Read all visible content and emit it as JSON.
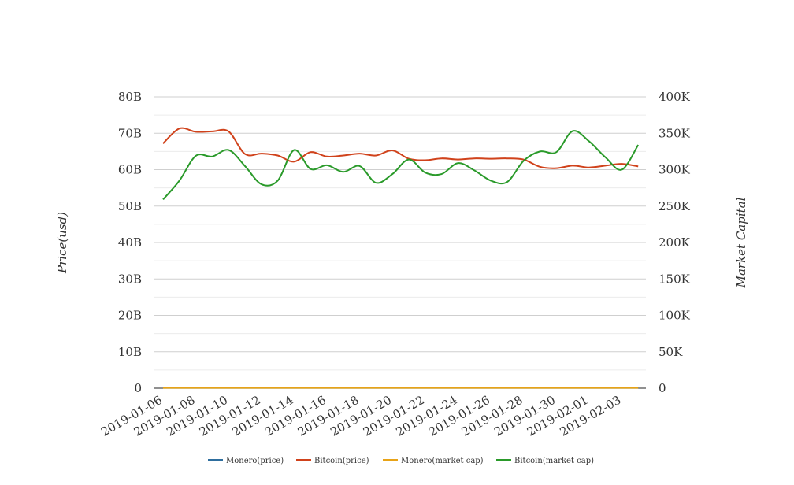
{
  "chart_data": {
    "type": "line",
    "x": [
      "2019-01-06",
      "2019-01-07",
      "2019-01-08",
      "2019-01-09",
      "2019-01-10",
      "2019-01-11",
      "2019-01-12",
      "2019-01-13",
      "2019-01-14",
      "2019-01-15",
      "2019-01-16",
      "2019-01-17",
      "2019-01-18",
      "2019-01-19",
      "2019-01-20",
      "2019-01-21",
      "2019-01-22",
      "2019-01-23",
      "2019-01-24",
      "2019-01-25",
      "2019-01-26",
      "2019-01-27",
      "2019-01-28",
      "2019-01-29",
      "2019-01-30",
      "2019-01-31",
      "2019-02-01",
      "2019-02-02",
      "2019-02-03",
      "2019-02-04"
    ],
    "x_tick_labels": [
      "2019-01-06",
      "2019-01-08",
      "2019-01-10",
      "2019-01-12",
      "2019-01-14",
      "2019-01-16",
      "2019-01-18",
      "2019-01-20",
      "2019-01-22",
      "2019-01-24",
      "2019-01-26",
      "2019-01-28",
      "2019-01-30",
      "2019-02-01",
      "2019-02-03"
    ],
    "ylabel_left": "Price(usd)",
    "ylabel_right": "Market Capital",
    "y_left_ticks": [
      "0",
      "10B",
      "20B",
      "30B",
      "40B",
      "50B",
      "60B",
      "70B",
      "80B"
    ],
    "y_right_ticks": [
      "0",
      "50K",
      "100K",
      "150K",
      "200K",
      "250K",
      "300K",
      "350K",
      "400K"
    ],
    "ylim_left": [
      0,
      80000000000
    ],
    "ylim_right": [
      0,
      400000
    ],
    "grid": true,
    "legend_position": "bottom",
    "series": [
      {
        "name": "Monero(price)",
        "axis": "left",
        "color": "#2e6e9e",
        "values": [
          80000000.0,
          80000000.0,
          80000000.0,
          80000000.0,
          80000000.0,
          80000000.0,
          80000000.0,
          80000000.0,
          80000000.0,
          80000000.0,
          80000000.0,
          80000000.0,
          80000000.0,
          80000000.0,
          80000000.0,
          80000000.0,
          80000000.0,
          80000000.0,
          80000000.0,
          80000000.0,
          80000000.0,
          80000000.0,
          80000000.0,
          80000000.0,
          80000000.0,
          80000000.0,
          80000000.0,
          80000000.0,
          80000000.0,
          80000000.0
        ]
      },
      {
        "name": "Bitcoin(price)",
        "axis": "left",
        "color": "#d0421b",
        "values": [
          67200000000.0,
          71300000000.0,
          70400000000.0,
          70500000000.0,
          70500000000.0,
          64300000000.0,
          64400000000.0,
          63900000000.0,
          62200000000.0,
          64800000000.0,
          63600000000.0,
          63900000000.0,
          64400000000.0,
          63900000000.0,
          65300000000.0,
          63000000000.0,
          62600000000.0,
          63100000000.0,
          62800000000.0,
          63100000000.0,
          63000000000.0,
          63100000000.0,
          62800000000.0,
          60800000000.0,
          60400000000.0,
          61100000000.0,
          60600000000.0,
          61100000000.0,
          61600000000.0,
          60900000000.0
        ]
      },
      {
        "name": "Monero(market cap)",
        "axis": "right",
        "color": "#e8a317",
        "values": [
          400,
          400,
          400,
          400,
          400,
          400,
          400,
          400,
          400,
          400,
          400,
          400,
          400,
          400,
          400,
          400,
          400,
          400,
          400,
          400,
          400,
          400,
          400,
          400,
          400,
          400,
          400,
          400,
          400,
          400
        ]
      },
      {
        "name": "Bitcoin(market cap)",
        "axis": "right",
        "color": "#2a9a2a",
        "values": [
          259000,
          285000,
          319000,
          318000,
          327000,
          305000,
          280000,
          285000,
          327000,
          301000,
          306000,
          297000,
          305000,
          282000,
          294000,
          314000,
          296000,
          294000,
          309000,
          299000,
          285000,
          283000,
          312000,
          325000,
          324000,
          353000,
          339000,
          317000,
          300000,
          334000
        ]
      }
    ]
  }
}
